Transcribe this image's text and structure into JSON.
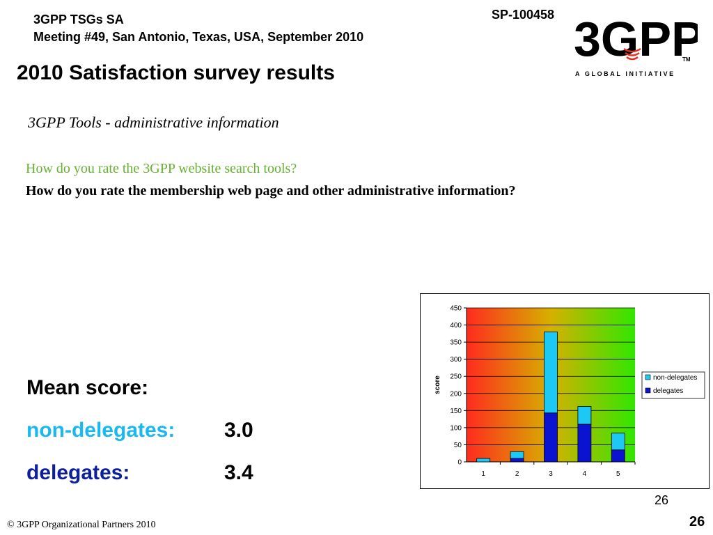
{
  "header": {
    "meeting_line1": "3GPP TSGs SA",
    "meeting_line2": "Meeting #49, San Antonio, Texas, USA, September 2010",
    "doc_id": "SP-100458"
  },
  "logo": {
    "text": "3GPP",
    "tagline": "A GLOBAL INITIATIVE",
    "tm": "TM"
  },
  "title": "2010 Satisfaction survey results",
  "subtitle": "3GPP Tools - administrative information",
  "questions": {
    "q1": "How do you rate the 3GPP website search tools?",
    "q2": "How do you rate the membership web page and other administrative information?"
  },
  "mean": {
    "label": "Mean score:",
    "non_delegates_label": "non-delegates:",
    "non_delegates_value": "3.0",
    "delegates_label": "delegates:",
    "delegates_value": "3.4"
  },
  "colors": {
    "non_delegates": "#1ec8f5",
    "delegates": "#0a14d0",
    "gradient_start": "#ff2b1e",
    "gradient_mid": "#d6b000",
    "gradient_end": "#32e600"
  },
  "chart_data": {
    "type": "bar",
    "stacked": true,
    "categories": [
      "1",
      "2",
      "3",
      "4",
      "5"
    ],
    "series": [
      {
        "name": "delegates",
        "values": [
          0,
          10,
          143,
          110,
          35
        ]
      },
      {
        "name": "non-delegates",
        "values": [
          10,
          20,
          237,
          52,
          49
        ]
      }
    ],
    "xlabel": "",
    "ylabel": "score",
    "ylim": [
      0,
      450
    ],
    "yticks": [
      0,
      50,
      100,
      150,
      200,
      250,
      300,
      350,
      400,
      450
    ],
    "grid": true,
    "legend_position": "right"
  },
  "footer": {
    "slide_number_small": "26",
    "copyright": "© 3GPP Organizational Partners 2010",
    "slide_number_big": "26"
  }
}
